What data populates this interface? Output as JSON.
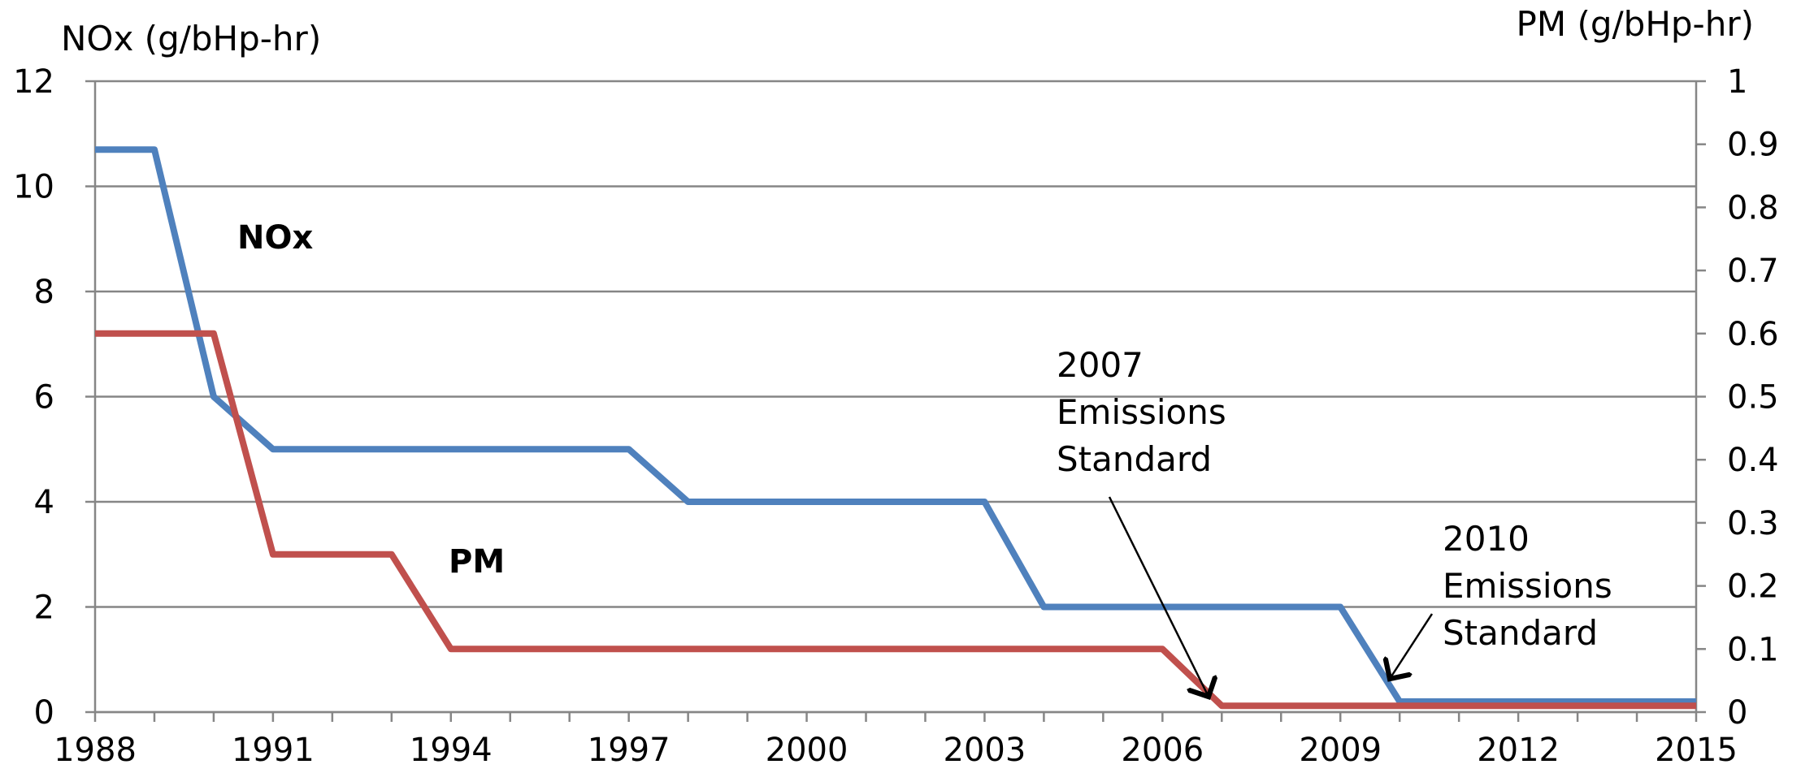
{
  "chart_data": {
    "type": "line",
    "y_left_label": "NOx (g/bHp-hr)",
    "y_right_label": "PM (g/bHp-hr)",
    "x_ticks": [
      "1988",
      "1991",
      "1994",
      "1997",
      "2000",
      "2003",
      "2006",
      "2009",
      "2012",
      "2015"
    ],
    "y_left_ticks": [
      "0",
      "2",
      "4",
      "6",
      "8",
      "10",
      "12"
    ],
    "y_right_ticks": [
      "0",
      "0.1",
      "0.2",
      "0.3",
      "0.4",
      "0.5",
      "0.6",
      "0.7",
      "0.8",
      "0.9",
      "1"
    ],
    "xlim": [
      1988,
      2015
    ],
    "ylim_left": [
      0,
      12
    ],
    "ylim_right": [
      0,
      1
    ],
    "grid": "horizontal",
    "series": [
      {
        "name": "NOx",
        "axis": "left",
        "color": "#4f81bd",
        "x": [
          1988,
          1989,
          1990,
          1991,
          1997,
          1998,
          2003,
          2004,
          2009,
          2010,
          2015
        ],
        "y": [
          10.7,
          10.7,
          6.0,
          5.0,
          5.0,
          4.0,
          4.0,
          2.0,
          2.0,
          0.2,
          0.2
        ]
      },
      {
        "name": "PM",
        "axis": "right",
        "color": "#c0504d",
        "x": [
          1988,
          1990,
          1991,
          1993,
          1994,
          2006,
          2007,
          2015
        ],
        "y": [
          0.6,
          0.6,
          0.25,
          0.25,
          0.1,
          0.1,
          0.01,
          0.01
        ]
      }
    ],
    "annotations": [
      {
        "lines": [
          "2007",
          "Emissions",
          "Standard"
        ],
        "points_to": [
          2007,
          0.2
        ]
      },
      {
        "lines": [
          "2010",
          "Emissions",
          "Standard"
        ],
        "points_to": [
          2010,
          0.5
        ]
      }
    ]
  }
}
